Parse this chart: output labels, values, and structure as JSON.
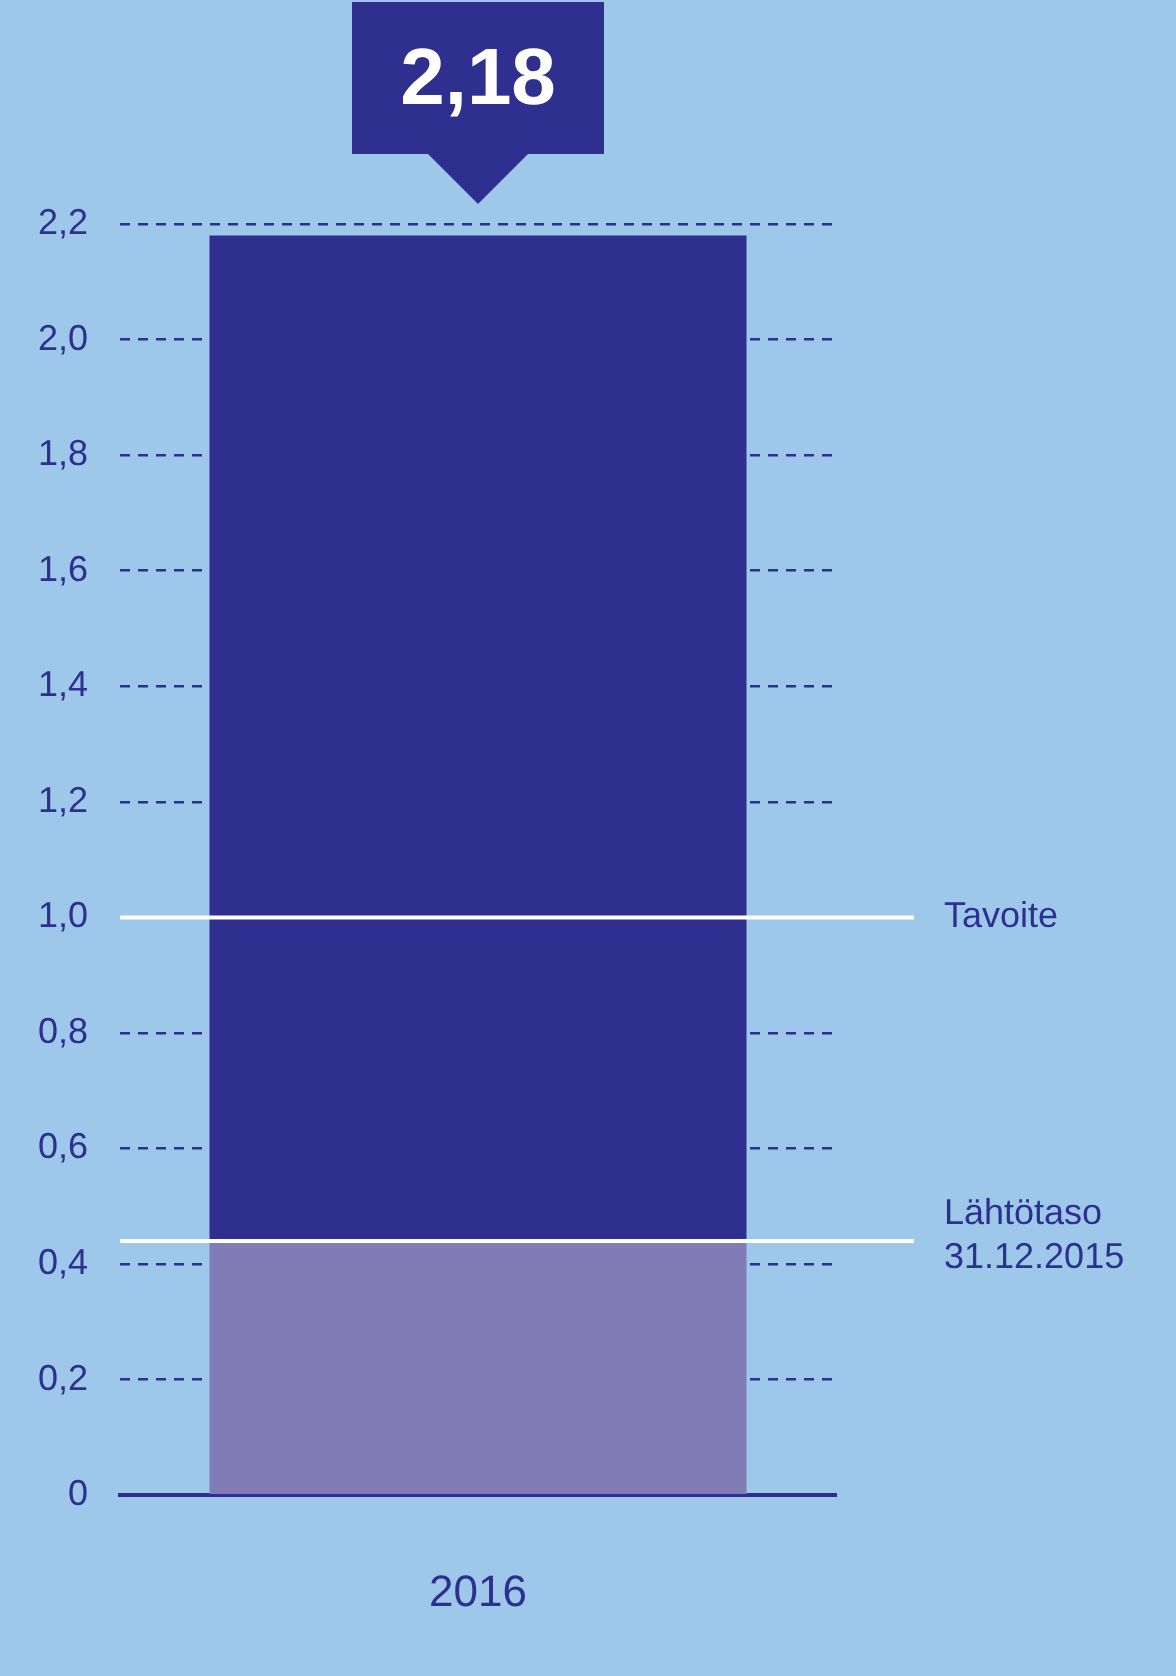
{
  "chart_data": {
    "type": "bar",
    "stacked": true,
    "categories": [
      "2016"
    ],
    "series": [
      {
        "color": "#817bb6",
        "values": [
          0.44
        ]
      },
      {
        "color": "#2e2f8f",
        "values": [
          1.74
        ]
      }
    ],
    "totals": [
      "2,18"
    ],
    "ylim": [
      0,
      2.2
    ],
    "yticks": [
      0,
      {
        "value": 0.2,
        "label": "0,2"
      },
      {
        "value": 0.4,
        "label": "0,4"
      },
      {
        "value": 0.6,
        "label": "0,6"
      },
      {
        "value": 0.8,
        "label": "0,8"
      },
      {
        "value": 1.0,
        "label": "1,0"
      },
      {
        "value": 1.2,
        "label": "1,2"
      },
      {
        "value": 1.4,
        "label": "1,4"
      },
      {
        "value": 1.6,
        "label": "1,6"
      },
      {
        "value": 1.8,
        "label": "1,8"
      },
      {
        "value": 2.0,
        "label": "2,0"
      },
      {
        "value": 2.2,
        "label": "2,2"
      }
    ],
    "grid": "y",
    "ref_lines": [
      {
        "axis": "y",
        "value": 1.0,
        "label": "Tavoite",
        "color": "#ffffff"
      },
      {
        "axis": "y",
        "value": 0.44,
        "label": "Lähtötaso\n31.12.2015",
        "color": "#ffffff"
      }
    ]
  }
}
